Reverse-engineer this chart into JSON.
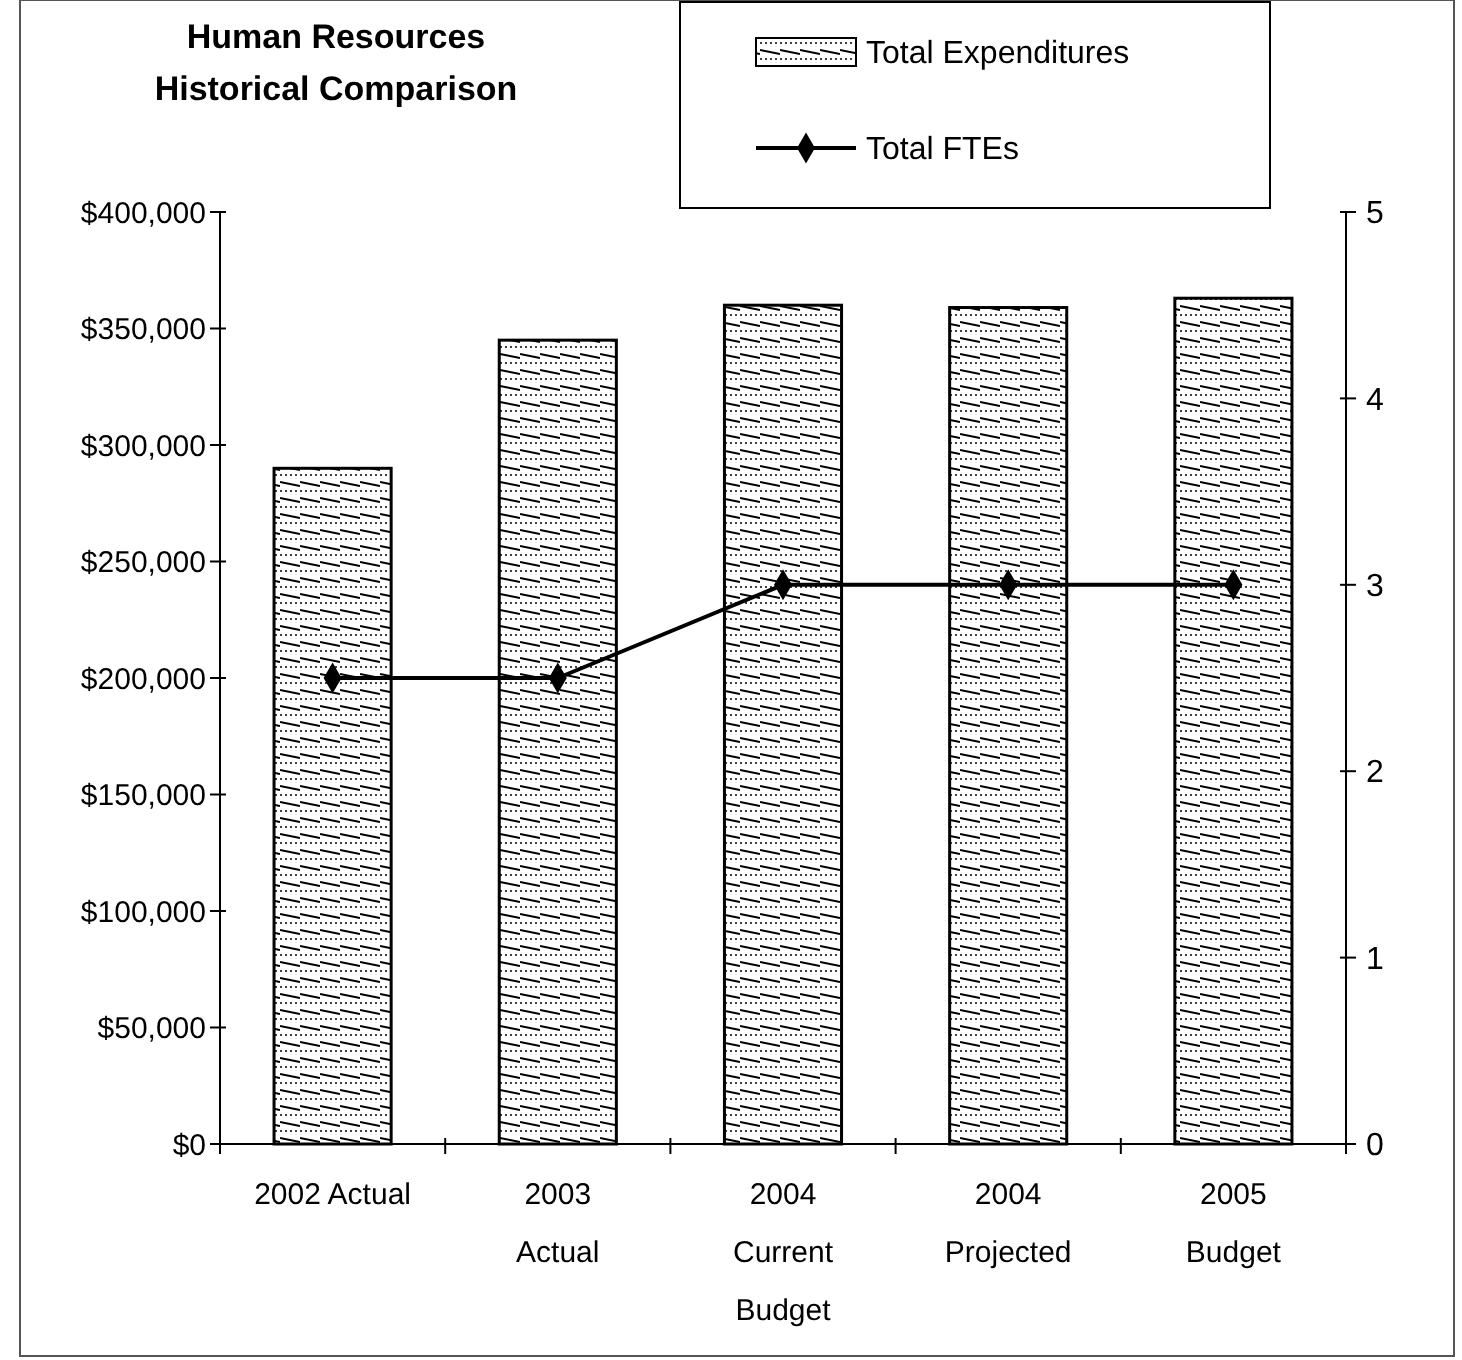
{
  "chart_data": {
    "type": "bar",
    "title": "Human Resources\nHistorical Comparison",
    "categories": [
      "2002 Actual",
      "2003\nActual",
      "2004\nCurrent\nBudget",
      "2004\nProjected",
      "2005\nBudget"
    ],
    "series": [
      {
        "name": "Total Expenditures",
        "color": "#000000",
        "values": [
          290000,
          345000,
          360000,
          359000,
          363000
        ]
      },
      {
        "name": "Total FTEs",
        "type": "line",
        "axis": "y2",
        "color": "#000000",
        "marker": "diamond",
        "values": [
          2.5,
          2.5,
          3,
          3,
          3
        ]
      }
    ],
    "ylim": [
      0,
      400000
    ],
    "yticks": [
      {
        "value": 0,
        "label": "$0"
      },
      {
        "value": 50000,
        "label": "$50,000"
      },
      {
        "value": 100000,
        "label": "$100,000"
      },
      {
        "value": 150000,
        "label": "$150,000"
      },
      {
        "value": 200000,
        "label": "$200,000"
      },
      {
        "value": 250000,
        "label": "$250,000"
      },
      {
        "value": 300000,
        "label": "$300,000"
      },
      {
        "value": 350000,
        "label": "$350,000"
      },
      {
        "value": 400000,
        "label": "$400,000"
      }
    ],
    "y2lim": [
      0,
      5
    ],
    "y2ticks": [
      0,
      1,
      2,
      3,
      4,
      5
    ],
    "legend": "top right",
    "grid": false
  }
}
